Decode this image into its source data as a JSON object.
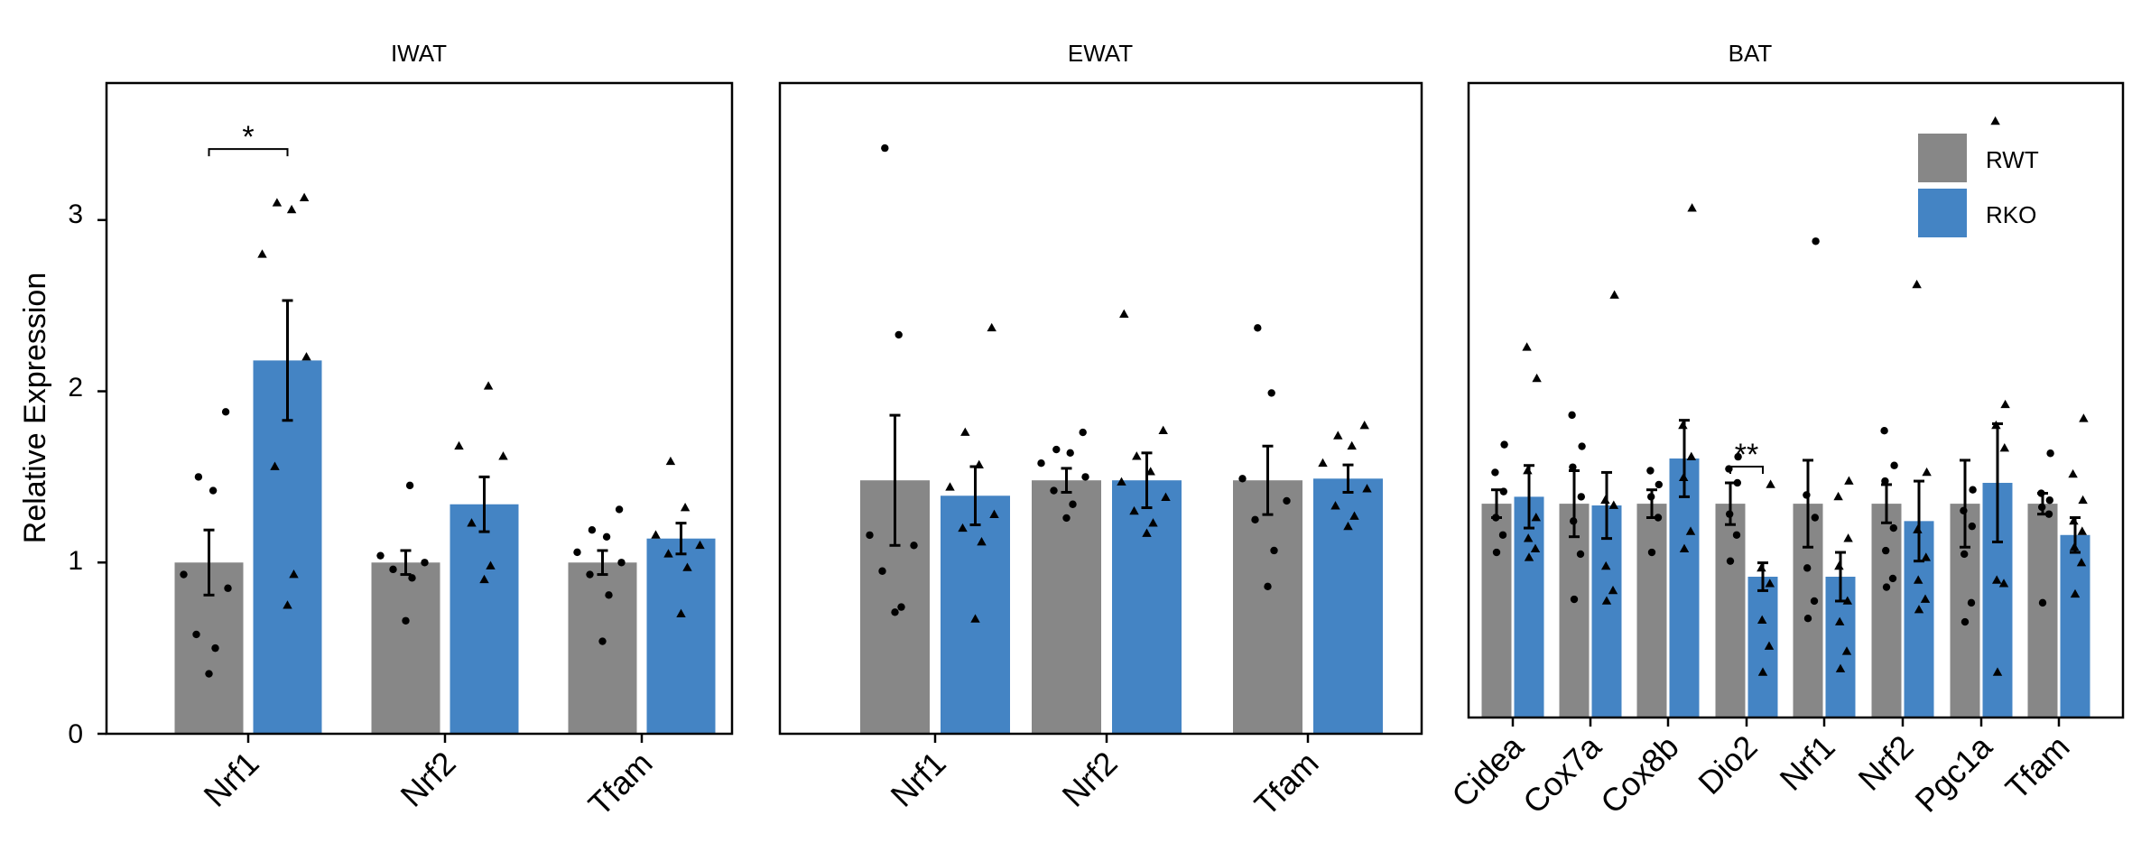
{
  "colors": {
    "RWT": "#878787",
    "RKO": "#4484c4",
    "axis": "#000000"
  },
  "chart_data": [
    {
      "type": "bar",
      "title": "IWAT",
      "ylabel": "Relative Expression",
      "ylim": [
        0,
        3.8
      ],
      "yticks": [
        "0",
        "1",
        "2",
        "3"
      ],
      "categories": [
        "Nrf1",
        "Nrf2",
        "Tfam"
      ],
      "series": [
        {
          "name": "RWT",
          "values": [
            1.0,
            1.0,
            1.0
          ],
          "errors": [
            0.19,
            0.07,
            0.07
          ],
          "points": [
            [
              0.35,
              0.5,
              0.58,
              0.85,
              0.93,
              1.42,
              1.5,
              1.88
            ],
            [
              0.66,
              0.91,
              0.96,
              1.0,
              1.04,
              1.45
            ],
            [
              0.54,
              0.81,
              0.93,
              1.0,
              1.06,
              1.15,
              1.19,
              1.31
            ]
          ]
        },
        {
          "name": "RKO",
          "values": [
            2.18,
            1.34,
            1.14
          ],
          "errors": [
            0.35,
            0.16,
            0.09
          ],
          "points": [
            [
              0.75,
              0.93,
              1.56,
              2.2,
              2.8,
              3.06,
              3.1,
              3.13
            ],
            [
              0.9,
              0.98,
              1.23,
              1.62,
              1.68,
              2.03
            ],
            [
              0.7,
              0.97,
              1.05,
              1.1,
              1.16,
              1.32,
              1.59
            ]
          ]
        }
      ],
      "annotations": [
        {
          "label": "*",
          "category": "Nrf1"
        }
      ]
    },
    {
      "type": "bar",
      "title": "EWAT",
      "ylim": [
        0,
        3.8
      ],
      "categories": [
        "Nrf1",
        "Nrf2",
        "Tfam"
      ],
      "series": [
        {
          "name": "RWT",
          "values": [
            1.48,
            1.48,
            1.48
          ],
          "errors": [
            0.38,
            0.07,
            0.2
          ],
          "points": [
            [
              0.71,
              0.74,
              0.95,
              1.1,
              1.16,
              2.33,
              3.42
            ],
            [
              1.26,
              1.34,
              1.42,
              1.5,
              1.58,
              1.64,
              1.66,
              1.76
            ],
            [
              0.86,
              1.07,
              1.25,
              1.36,
              1.49,
              1.99,
              2.37
            ]
          ]
        },
        {
          "name": "RKO",
          "values": [
            1.39,
            1.48,
            1.49
          ],
          "errors": [
            0.17,
            0.16,
            0.08
          ],
          "points": [
            [
              0.67,
              1.12,
              1.2,
              1.28,
              1.44,
              1.57,
              1.76,
              2.37
            ],
            [
              1.17,
              1.23,
              1.3,
              1.38,
              1.47,
              1.53,
              1.62,
              1.77,
              2.45
            ],
            [
              1.21,
              1.27,
              1.33,
              1.43,
              1.58,
              1.68,
              1.74,
              1.8
            ]
          ]
        }
      ]
    },
    {
      "type": "bar",
      "title": "BAT",
      "ylim": [
        0,
        3.65
      ],
      "categories": [
        "Cidea",
        "Cox7a",
        "Cox8b",
        "Dio2",
        "Nrf1",
        "Nrf2",
        "Pgc1a",
        "Tfam"
      ],
      "legend": {
        "position": "top-right",
        "entries": [
          "RWT",
          "RKO"
        ]
      },
      "series": [
        {
          "name": "RWT",
          "values": [
            1.23,
            1.23,
            1.23,
            1.23,
            1.23,
            1.23,
            1.23,
            1.23
          ],
          "errors": [
            0.08,
            0.19,
            0.08,
            0.12,
            0.25,
            0.11,
            0.25,
            0.06
          ],
          "points": [
            [
              0.95,
              1.05,
              1.15,
              1.3,
              1.41,
              1.57
            ],
            [
              0.68,
              0.94,
              1.13,
              1.27,
              1.44,
              1.56,
              1.74
            ],
            [
              0.95,
              1.15,
              1.27,
              1.34,
              1.42
            ],
            [
              0.9,
              1.05,
              1.17,
              1.35,
              1.43,
              1.5
            ],
            [
              0.57,
              0.67,
              0.86,
              1.15,
              1.28,
              2.74
            ],
            [
              0.75,
              0.8,
              0.96,
              1.09,
              1.36,
              1.45,
              1.65
            ],
            [
              0.55,
              0.66,
              0.94,
              1.1,
              1.19,
              1.31,
              2.88
            ],
            [
              0.66,
              1.17,
              1.21,
              1.25,
              1.29,
              1.52
            ]
          ]
        },
        {
          "name": "RKO",
          "values": [
            1.27,
            1.22,
            1.49,
            0.81,
            0.81,
            1.13,
            1.35,
            1.05
          ],
          "errors": [
            0.18,
            0.19,
            0.22,
            0.08,
            0.14,
            0.23,
            0.34,
            0.1
          ],
          "points": [
            [
              0.92,
              0.97,
              1.03,
              1.15,
              1.42,
              1.95,
              2.13
            ],
            [
              0.67,
              0.73,
              0.87,
              1.22,
              1.25,
              2.43
            ],
            [
              0.97,
              1.07,
              1.38,
              1.5,
              1.68,
              2.93
            ],
            [
              0.26,
              0.41,
              0.56,
              0.77,
              0.86,
              1.34
            ],
            [
              0.28,
              0.38,
              0.55,
              0.67,
              0.87,
              1.03,
              1.27,
              1.36
            ],
            [
              0.62,
              0.68,
              0.79,
              0.92,
              1.08,
              1.41,
              2.49
            ],
            [
              0.26,
              0.77,
              0.79,
              1.55,
              1.68,
              1.8,
              3.43
            ],
            [
              0.71,
              0.89,
              0.98,
              1.07,
              1.13,
              1.25,
              1.4,
              1.72
            ]
          ]
        }
      ],
      "annotations": [
        {
          "label": "**",
          "category": "Dio2"
        }
      ]
    }
  ]
}
